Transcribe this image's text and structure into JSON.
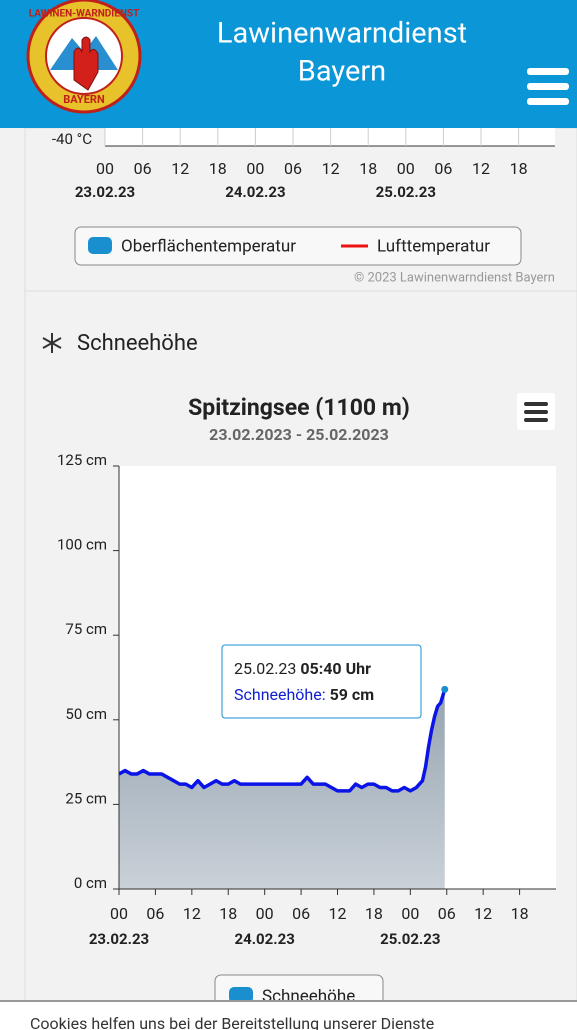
{
  "header": {
    "title_line1": "Lawinenwarndienst",
    "title_line2": "Bayern",
    "logo_top": "LAWINEN-WARNDIENST",
    "logo_bottom": "BAYERN"
  },
  "top_chart": {
    "y_min_label": "-40 °C",
    "xticks": [
      "00",
      "06",
      "12",
      "18",
      "00",
      "06",
      "12",
      "18",
      "00",
      "06",
      "12",
      "18"
    ],
    "dates": [
      "23.02.23",
      "24.02.23",
      "25.02.23"
    ],
    "legend": [
      {
        "name": "Oberflächentemperatur",
        "color": "#1a8fd0"
      },
      {
        "name": "Lufttemperatur",
        "color": "#ee1111"
      }
    ],
    "credit": "© 2023 Lawinenwarndienst Bayern"
  },
  "section_title": "Schneehöhe",
  "chart_data": {
    "type": "line",
    "title": "Spitzingsee (1100 m)",
    "subtitle": "23.02.2023 - 25.02.2023",
    "x": [
      0,
      1,
      2,
      3,
      4,
      5,
      6,
      7,
      8,
      9,
      10,
      11,
      12,
      13,
      14,
      15,
      16,
      17,
      18,
      19,
      20,
      22,
      24,
      26,
      28,
      30,
      31,
      32,
      34,
      35,
      36,
      37,
      38,
      39,
      40,
      41,
      42,
      43,
      44,
      45,
      46,
      47,
      48,
      49,
      50,
      50.5,
      51,
      51.5,
      52,
      52.5,
      53,
      53.67
    ],
    "series": [
      {
        "name": "Schneehöhe",
        "color": "#0a14e6",
        "values": [
          34,
          35,
          34,
          34,
          35,
          34,
          34,
          34,
          33,
          32,
          31,
          31,
          30,
          32,
          30,
          31,
          32,
          31,
          31,
          32,
          31,
          31,
          31,
          31,
          31,
          31,
          33,
          31,
          31,
          30,
          29,
          29,
          29,
          31,
          30,
          31,
          31,
          30,
          30,
          29,
          29,
          30,
          29,
          30,
          32,
          36,
          42,
          47,
          51,
          54,
          55,
          59
        ]
      }
    ],
    "xlim": [
      0,
      72
    ],
    "xticks": [
      {
        "value": 0,
        "label": "00"
      },
      {
        "value": 6,
        "label": "06"
      },
      12,
      18,
      {
        "value": 24,
        "label": "00"
      },
      {
        "value": 30,
        "label": "06"
      },
      {
        "value": 36,
        "label": "12"
      },
      {
        "value": 42,
        "label": "18"
      },
      {
        "value": 48,
        "label": "00"
      },
      {
        "value": 54,
        "label": "06"
      },
      {
        "value": 60,
        "label": "12"
      },
      {
        "value": 66,
        "label": "18"
      }
    ],
    "xdates": [
      {
        "value": 0,
        "label": "23.02.23"
      },
      {
        "value": 24,
        "label": "24.02.23"
      },
      {
        "value": 48,
        "label": "25.02.23"
      }
    ],
    "ylim": [
      0,
      125
    ],
    "yticks": [
      {
        "value": 0,
        "label": "0 cm"
      },
      {
        "value": 25,
        "label": "25 cm"
      },
      {
        "value": 50,
        "label": "50 cm"
      },
      {
        "value": 75,
        "label": "75 cm"
      },
      {
        "value": 100,
        "label": "100 cm"
      },
      {
        "value": 125,
        "label": "125 cm"
      }
    ],
    "grid": true,
    "xminor": 3,
    "yminor": 5,
    "tooltip": {
      "date": "25.02.23",
      "time": "05:40 Uhr",
      "series": "Schneehöhe:",
      "value": "59 cm"
    }
  },
  "cookie_text": "Cookies helfen uns bei der Bereitstellung unserer Dienste"
}
